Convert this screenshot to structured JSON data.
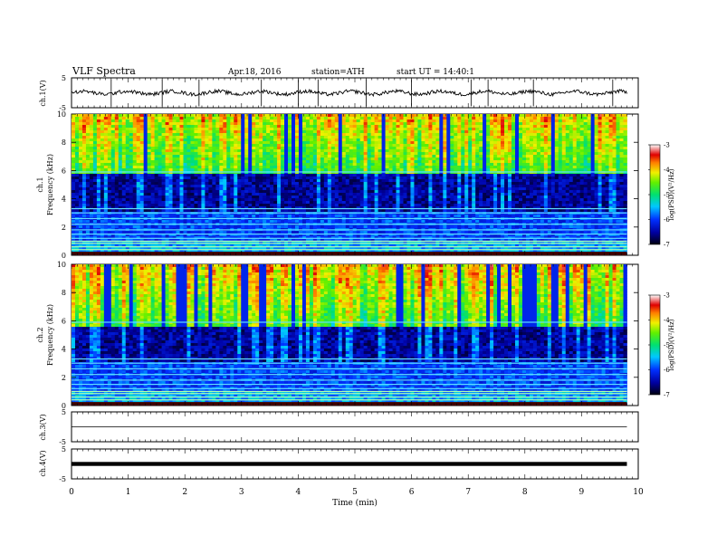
{
  "header": {
    "title": "VLF Spectra",
    "date": "Apr.18, 2016",
    "station": "station=ATH",
    "start": "start UT =  14:40:1"
  },
  "chart_data": [
    {
      "type": "line",
      "panel": "ch1",
      "ylabel": "ch.1(V)",
      "ylim": [
        -5,
        5
      ],
      "yticks": [
        "5",
        "-5"
      ],
      "xlim": [
        0,
        10
      ],
      "description_series": "noisy waveform around 0 V with spikes",
      "baseline": 0,
      "spikes_min": [
        0.7,
        1.6,
        2.25,
        3.35,
        4.0,
        4.35,
        5.2,
        6.0,
        7.05,
        7.35,
        8.15,
        9.55
      ],
      "data_end": 9.8
    },
    {
      "type": "heatmap",
      "panel": "ch1-spectrogram",
      "ylabel": "ch.1",
      "ylabel2": "Frequency (kHz)",
      "ylim": [
        0,
        10
      ],
      "yticks": [
        "0",
        "2",
        "4",
        "6",
        "8",
        "10"
      ],
      "xlim": [
        0,
        10
      ],
      "data_end": 9.8,
      "dark_band_khz": [
        3.0,
        5.8
      ],
      "colorbar": {
        "label": "log(PSD)(V²/Hz)",
        "ticks": [
          "-3",
          "-4",
          "-5",
          "-6",
          "-7"
        ],
        "range": [
          -7,
          -3
        ]
      }
    },
    {
      "type": "heatmap",
      "panel": "ch2-spectrogram",
      "ylabel": "ch.2",
      "ylabel2": "Frequency (kHz)",
      "ylim": [
        0,
        10
      ],
      "yticks": [
        "0",
        "2",
        "4",
        "6",
        "8",
        "10"
      ],
      "xlim": [
        0,
        10
      ],
      "data_end": 9.8,
      "dark_band_khz": [
        3.0,
        5.5
      ],
      "colorbar": {
        "label": "log(PSD)(V²/Hz)",
        "ticks": [
          "-3",
          "-4",
          "-5",
          "-6",
          "-7"
        ],
        "range": [
          -7,
          -3
        ]
      }
    },
    {
      "type": "line",
      "panel": "ch3",
      "ylabel": "ch.3(V)",
      "ylim": [
        -5,
        5
      ],
      "yticks": [
        "5",
        "-5"
      ],
      "xlim": [
        0,
        10
      ],
      "baseline": 0,
      "data_end": 9.8
    },
    {
      "type": "line",
      "panel": "ch4",
      "ylabel": "ch.4(V)",
      "ylim": [
        -5,
        5
      ],
      "yticks": [
        "5",
        "-5"
      ],
      "xlim": [
        0,
        10
      ],
      "baseline": 0,
      "data_end": 9.8
    }
  ],
  "xaxis": {
    "label": "Time (min)",
    "ticks": [
      "0",
      "1",
      "2",
      "3",
      "4",
      "5",
      "6",
      "7",
      "8",
      "9",
      "10"
    ],
    "range": [
      0,
      10
    ]
  }
}
